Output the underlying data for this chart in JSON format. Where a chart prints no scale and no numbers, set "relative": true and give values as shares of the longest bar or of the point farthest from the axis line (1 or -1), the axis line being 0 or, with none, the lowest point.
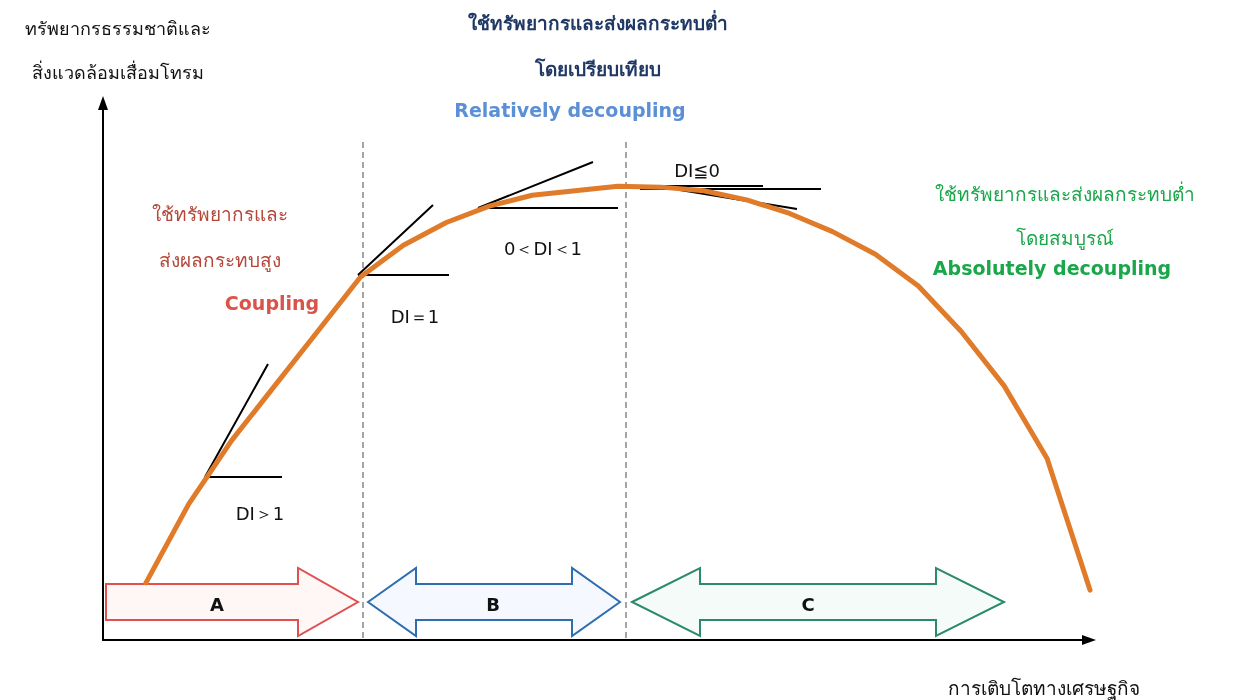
{
  "chart_data": {
    "type": "line",
    "relative": true,
    "xlabel": "การเติบโตทางเศรษฐกิจ",
    "categories": [
      null,
      null,
      null,
      null,
      null,
      null,
      null,
      null,
      null,
      null,
      null,
      null,
      null,
      null,
      null,
      null,
      null,
      null,
      null,
      null,
      null,
      null,
      null,
      null
    ],
    "series": [
      {
        "color": "#e07b2a",
        "values": [
          null,
          0.126,
          0.3,
          0.44,
          0.56,
          0.68,
          0.8,
          0.87,
          0.92,
          0.956,
          0.98,
          0.99,
          1,
          0.998,
          0.99,
          0.97,
          0.94,
          0.9,
          0.85,
          0.78,
          0.68,
          0.56,
          0.4,
          0.11
        ]
      }
    ],
    "marker": "none",
    "line_style": "solid",
    "grid": false,
    "annotations": [
      "ใช้ทรัพยากรและ\nส่งผลกระทบสูง",
      "Coupling",
      "ใช้ทรัพยากรและส่งผลกระทบต่ำ\nโดยเปรียบเทียบ",
      "Relatively decoupling",
      "ใช้ทรัพยากรและส่งผลกระทบต่ำ\nโดยสมบูรณ์",
      "Absolutely decoupling",
      "DI＞1",
      "DI＝1",
      "0＜DI＜1",
      "DI≦0",
      "A",
      "B",
      "C",
      "ทรัพยากรธรรมชาติและ\nสิ่งแวดล้อมเสื่อมโทรม"
    ]
  }
}
